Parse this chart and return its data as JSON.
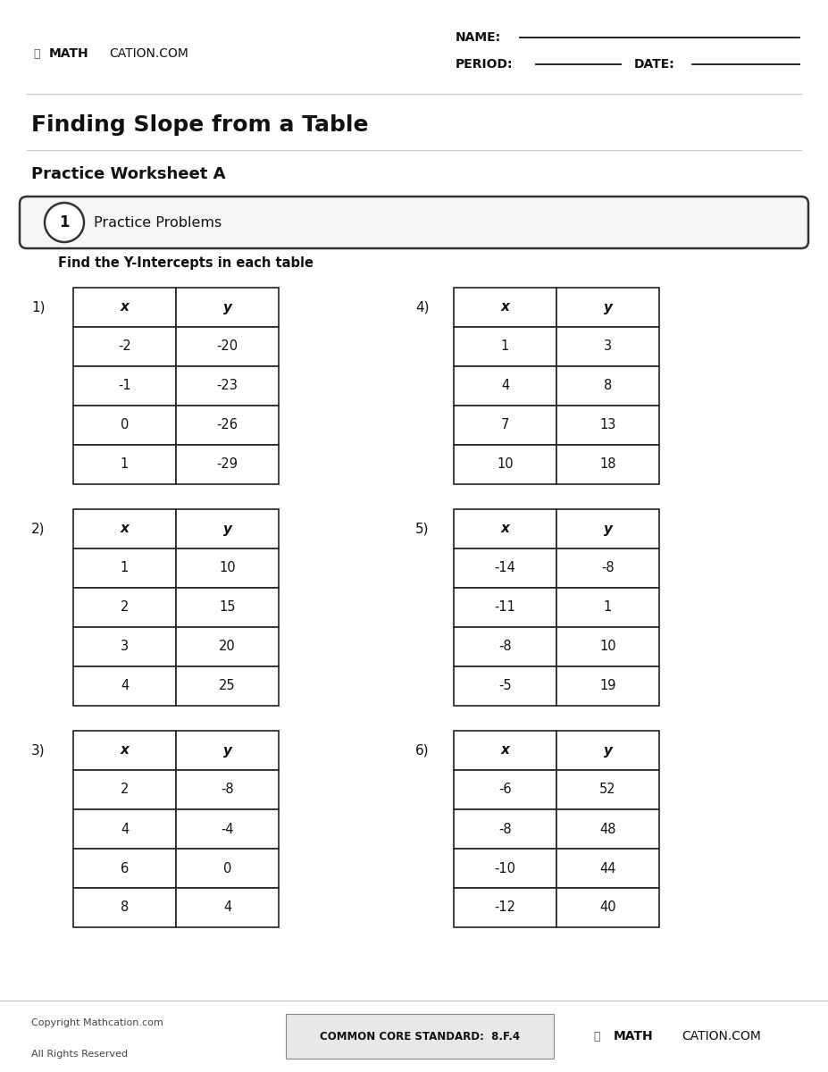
{
  "title": "Finding Slope from a Table",
  "subtitle": "Practice Worksheet A",
  "section_label": "1",
  "section_title": "Practice Problems",
  "instruction": "Find the Y-Intercepts in each table",
  "tables": [
    {
      "number": "1)",
      "col_x": [
        "x",
        "-2",
        "-1",
        "0",
        "1"
      ],
      "col_y": [
        "y",
        "-20",
        "-23",
        "-26",
        "-29"
      ]
    },
    {
      "number": "2)",
      "col_x": [
        "x",
        "1",
        "2",
        "3",
        "4"
      ],
      "col_y": [
        "y",
        "10",
        "15",
        "20",
        "25"
      ]
    },
    {
      "number": "3)",
      "col_x": [
        "x",
        "2",
        "4",
        "6",
        "8"
      ],
      "col_y": [
        "y",
        "-8",
        "-4",
        "0",
        "4"
      ]
    },
    {
      "number": "4)",
      "col_x": [
        "x",
        "1",
        "4",
        "7",
        "10"
      ],
      "col_y": [
        "y",
        "3",
        "8",
        "13",
        "18"
      ]
    },
    {
      "number": "5)",
      "col_x": [
        "x",
        "-14",
        "-11",
        "-8",
        "-5"
      ],
      "col_y": [
        "y",
        "-8",
        "1",
        "10",
        "19"
      ]
    },
    {
      "number": "6)",
      "col_x": [
        "x",
        "-6",
        "-8",
        "-10",
        "-12"
      ],
      "col_y": [
        "y",
        "52",
        "48",
        "44",
        "40"
      ]
    }
  ],
  "bg_color": "#ffffff",
  "text_color": "#111111",
  "border_color": "#222222",
  "light_border": "#aaaaaa",
  "footer_bg": "#e8e8e8",
  "pill_bg": "#f5f5f5"
}
